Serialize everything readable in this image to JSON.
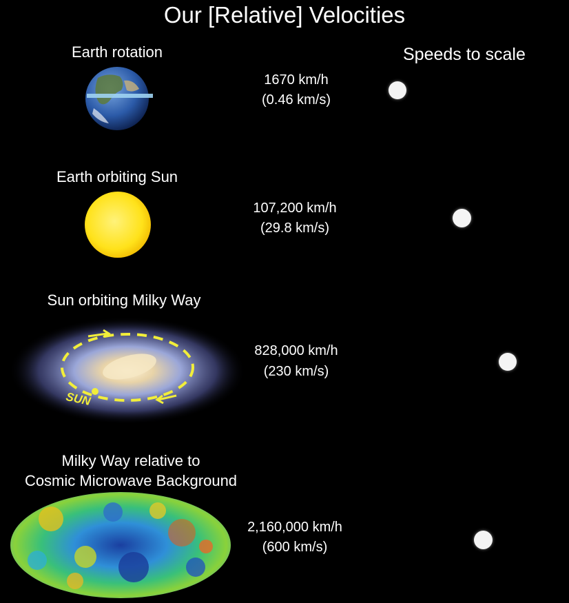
{
  "title": "Our [Relative] Velocities",
  "scale_label": "Speeds to scale",
  "rows": [
    {
      "caption": "Earth rotation",
      "speed_kmh": "1670 km/h",
      "speed_kms": "(0.46 km/s)",
      "picture": "earth-icon"
    },
    {
      "caption": "Earth orbiting Sun",
      "speed_kmh": "107,200 km/h",
      "speed_kms": "(29.8 km/s)",
      "picture": "sun-icon"
    },
    {
      "caption": "Sun orbiting Milky Way",
      "speed_kmh": "828,000 km/h",
      "speed_kms": "(230 km/s)",
      "picture": "galaxy-icon",
      "orbit_marker": "SUN"
    },
    {
      "caption_line1": "Milky Way relative to",
      "caption_line2": "Cosmic Microwave Background",
      "speed_kmh": "2,160,000 km/h",
      "speed_kms": "(600 km/s)",
      "picture": "cmb-map-icon"
    }
  ],
  "colors": {
    "background": "#000000",
    "text": "#ffffff",
    "dot": "#f4f4f4",
    "orbit": "#f2ee3a",
    "sun": "#ffe21a"
  }
}
